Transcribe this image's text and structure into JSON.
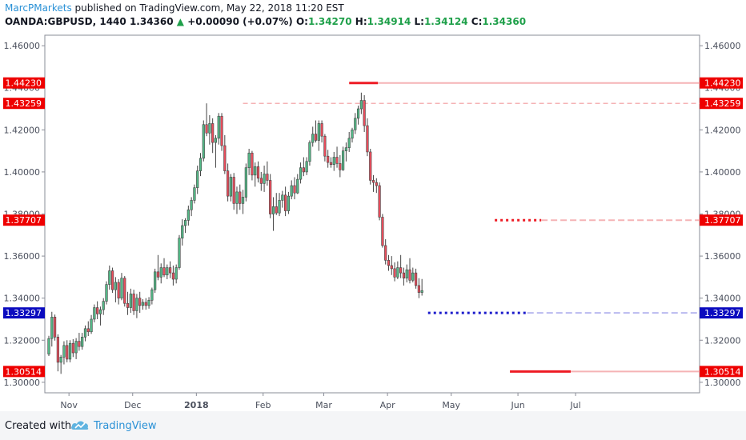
{
  "header": {
    "author": "MarcPMarkets",
    "published_text": " published on TradingView.com, May 22, 2018 11:20 EST",
    "symbol": "OANDA:GBPUSD, 1440",
    "price": "1.34360",
    "change": "+0.00090 (+0.07%)",
    "o_label": "O:",
    "o_value": "1.34270",
    "h_label": "H:",
    "h_value": "1.34914",
    "l_label": "L:",
    "l_value": "1.34124",
    "c_label": "C:",
    "c_value": "1.34360"
  },
  "footer": {
    "created_with": "Created with",
    "brand": "TradingView"
  },
  "colors": {
    "up": "#53b987",
    "down": "#eb4d5c",
    "red_line": "#ee1c25",
    "blue_line": "#1c1ccc",
    "red_tag": "#ee0000",
    "blue_tag": "#0b0bbf"
  },
  "chart_data": {
    "type": "candlestick",
    "ylim": [
      1.295,
      1.465
    ],
    "y_ticks": [
      "1.30000",
      "1.32000",
      "1.34000",
      "1.36000",
      "1.38000",
      "1.40000",
      "1.42000",
      "1.44000",
      "1.46000"
    ],
    "x_labels": [
      "Nov",
      "Dec",
      "2018",
      "Feb",
      "Mar",
      "Apr",
      "May",
      "Jun",
      "Jul"
    ],
    "x_label_bars": [
      4,
      25,
      46,
      68,
      88,
      109,
      130,
      152,
      171
    ],
    "levels": [
      {
        "value": 1.4423,
        "label": "1.44230",
        "color": "red",
        "style": "solid",
        "start_bar": 99
      },
      {
        "value": 1.43259,
        "label": "1.43259",
        "color": "red",
        "style": "dashed",
        "start_bar": 64
      },
      {
        "value": 1.37707,
        "label": "1.37707",
        "color": "red",
        "style": "dotted",
        "start_bar": 147
      },
      {
        "value": 1.33297,
        "label": "1.33297",
        "color": "blue",
        "style": "dotted",
        "start_bar": 125
      },
      {
        "value": 1.30514,
        "label": "1.30514",
        "color": "red",
        "style": "solid",
        "start_bar": 152
      }
    ],
    "ohlc": [
      [
        1.3134,
        1.3221,
        1.3125,
        1.3208
      ],
      [
        1.3208,
        1.3335,
        1.317,
        1.331
      ],
      [
        1.331,
        1.3322,
        1.3198,
        1.3215
      ],
      [
        1.3215,
        1.3228,
        1.3052,
        1.3095
      ],
      [
        1.3095,
        1.313,
        1.304,
        1.312
      ],
      [
        1.312,
        1.3195,
        1.3085,
        1.3175
      ],
      [
        1.3175,
        1.32,
        1.3095,
        1.311
      ],
      [
        1.311,
        1.32,
        1.3095,
        1.3185
      ],
      [
        1.3185,
        1.3205,
        1.312,
        1.314
      ],
      [
        1.314,
        1.321,
        1.311,
        1.3195
      ],
      [
        1.3195,
        1.3235,
        1.315,
        1.317
      ],
      [
        1.317,
        1.3235,
        1.3155,
        1.3215
      ],
      [
        1.3215,
        1.327,
        1.3195,
        1.3255
      ],
      [
        1.3255,
        1.329,
        1.322,
        1.324
      ],
      [
        1.324,
        1.332,
        1.323,
        1.33
      ],
      [
        1.33,
        1.337,
        1.3285,
        1.3355
      ],
      [
        1.3355,
        1.3385,
        1.33,
        1.3325
      ],
      [
        1.3325,
        1.336,
        1.327,
        1.3345
      ],
      [
        1.3345,
        1.34,
        1.332,
        1.3385
      ],
      [
        1.3385,
        1.348,
        1.337,
        1.3465
      ],
      [
        1.3465,
        1.3555,
        1.344,
        1.353
      ],
      [
        1.353,
        1.3545,
        1.3425,
        1.344
      ],
      [
        1.344,
        1.35,
        1.338,
        1.3475
      ],
      [
        1.3475,
        1.349,
        1.337,
        1.34
      ],
      [
        1.34,
        1.352,
        1.339,
        1.3495
      ],
      [
        1.3495,
        1.3505,
        1.336,
        1.3375
      ],
      [
        1.3375,
        1.343,
        1.332,
        1.3355
      ],
      [
        1.3355,
        1.3445,
        1.333,
        1.342
      ],
      [
        1.342,
        1.344,
        1.332,
        1.334
      ],
      [
        1.334,
        1.342,
        1.3305,
        1.34
      ],
      [
        1.34,
        1.343,
        1.333,
        1.3365
      ],
      [
        1.3365,
        1.3395,
        1.3345,
        1.338
      ],
      [
        1.338,
        1.34,
        1.3345,
        1.3365
      ],
      [
        1.3365,
        1.3405,
        1.335,
        1.339
      ],
      [
        1.339,
        1.345,
        1.337,
        1.344
      ],
      [
        1.344,
        1.354,
        1.3425,
        1.3525
      ],
      [
        1.3525,
        1.3605,
        1.3485,
        1.35
      ],
      [
        1.35,
        1.3565,
        1.347,
        1.3545
      ],
      [
        1.3545,
        1.359,
        1.35,
        1.351
      ],
      [
        1.351,
        1.356,
        1.349,
        1.3545
      ],
      [
        1.3545,
        1.3575,
        1.3495,
        1.352
      ],
      [
        1.352,
        1.3555,
        1.346,
        1.349
      ],
      [
        1.349,
        1.356,
        1.347,
        1.3545
      ],
      [
        1.3545,
        1.37,
        1.3535,
        1.3685
      ],
      [
        1.3685,
        1.3775,
        1.365,
        1.3745
      ],
      [
        1.3745,
        1.378,
        1.371,
        1.377
      ],
      [
        1.377,
        1.384,
        1.3745,
        1.382
      ],
      [
        1.382,
        1.388,
        1.379,
        1.3865
      ],
      [
        1.3865,
        1.394,
        1.385,
        1.3925
      ],
      [
        1.3925,
        1.403,
        1.3895,
        1.4005
      ],
      [
        1.4005,
        1.409,
        1.398,
        1.4065
      ],
      [
        1.4065,
        1.4245,
        1.405,
        1.4225
      ],
      [
        1.4225,
        1.4326,
        1.417,
        1.4185
      ],
      [
        1.4185,
        1.427,
        1.413,
        1.423
      ],
      [
        1.423,
        1.4255,
        1.409,
        1.414
      ],
      [
        1.414,
        1.4175,
        1.402,
        1.416
      ],
      [
        1.416,
        1.428,
        1.413,
        1.4265
      ],
      [
        1.4265,
        1.428,
        1.41,
        1.4125
      ],
      [
        1.4125,
        1.4175,
        1.399,
        1.4005
      ],
      [
        1.4005,
        1.404,
        1.386,
        1.3885
      ],
      [
        1.3885,
        1.399,
        1.386,
        1.3975
      ],
      [
        1.3975,
        1.3995,
        1.382,
        1.385
      ],
      [
        1.385,
        1.393,
        1.38,
        1.3905
      ],
      [
        1.3905,
        1.394,
        1.382,
        1.385
      ],
      [
        1.385,
        1.3915,
        1.38,
        1.388
      ],
      [
        1.388,
        1.404,
        1.386,
        1.402
      ],
      [
        1.402,
        1.411,
        1.3985,
        1.409
      ],
      [
        1.409,
        1.41,
        1.396,
        1.3985
      ],
      [
        1.3985,
        1.4045,
        1.393,
        1.4025
      ],
      [
        1.4025,
        1.405,
        1.395,
        1.397
      ],
      [
        1.397,
        1.4,
        1.391,
        1.3945
      ],
      [
        1.3945,
        1.403,
        1.3905,
        1.399
      ],
      [
        1.399,
        1.405,
        1.3935,
        1.396
      ],
      [
        1.396,
        1.399,
        1.378,
        1.38
      ],
      [
        1.38,
        1.388,
        1.372,
        1.3835
      ],
      [
        1.3835,
        1.39,
        1.3795,
        1.3805
      ],
      [
        1.3805,
        1.39,
        1.379,
        1.3865
      ],
      [
        1.3865,
        1.391,
        1.383,
        1.389
      ],
      [
        1.389,
        1.393,
        1.379,
        1.3815
      ],
      [
        1.3815,
        1.3905,
        1.38,
        1.3885
      ],
      [
        1.3885,
        1.396,
        1.387,
        1.3935
      ],
      [
        1.3935,
        1.3975,
        1.387,
        1.39
      ],
      [
        1.39,
        1.399,
        1.3895,
        1.3965
      ],
      [
        1.3965,
        1.4045,
        1.3945,
        1.402
      ],
      [
        1.402,
        1.407,
        1.398,
        1.4
      ],
      [
        1.4,
        1.407,
        1.3985,
        1.405
      ],
      [
        1.405,
        1.415,
        1.403,
        1.414
      ],
      [
        1.414,
        1.4215,
        1.412,
        1.418
      ],
      [
        1.418,
        1.4245,
        1.414,
        1.415
      ],
      [
        1.415,
        1.4245,
        1.41,
        1.423
      ],
      [
        1.423,
        1.4245,
        1.414,
        1.417
      ],
      [
        1.417,
        1.418,
        1.405,
        1.4075
      ],
      [
        1.4075,
        1.4105,
        1.402,
        1.4045
      ],
      [
        1.4045,
        1.407,
        1.402,
        1.4035
      ],
      [
        1.4035,
        1.4095,
        1.4005,
        1.407
      ],
      [
        1.407,
        1.412,
        1.402,
        1.404
      ],
      [
        1.404,
        1.408,
        1.3975,
        1.401
      ],
      [
        1.401,
        1.412,
        1.4005,
        1.41
      ],
      [
        1.41,
        1.414,
        1.405,
        1.4115
      ],
      [
        1.4115,
        1.419,
        1.4095,
        1.416
      ],
      [
        1.416,
        1.421,
        1.414,
        1.42
      ],
      [
        1.42,
        1.428,
        1.418,
        1.4255
      ],
      [
        1.4255,
        1.4315,
        1.4225,
        1.43
      ],
      [
        1.43,
        1.4377,
        1.4275,
        1.434
      ],
      [
        1.434,
        1.4365,
        1.419,
        1.422
      ],
      [
        1.422,
        1.4255,
        1.4075,
        1.4095
      ],
      [
        1.4095,
        1.411,
        1.394,
        1.396
      ],
      [
        1.396,
        1.3985,
        1.3905,
        1.395
      ],
      [
        1.395,
        1.397,
        1.39,
        1.3935
      ],
      [
        1.3935,
        1.395,
        1.377,
        1.3785
      ],
      [
        1.3785,
        1.38,
        1.364,
        1.365
      ],
      [
        1.365,
        1.368,
        1.356,
        1.358
      ],
      [
        1.358,
        1.3605,
        1.353,
        1.3555
      ],
      [
        1.3555,
        1.36,
        1.351,
        1.354
      ],
      [
        1.354,
        1.357,
        1.348,
        1.35
      ],
      [
        1.35,
        1.3575,
        1.349,
        1.3545
      ],
      [
        1.3545,
        1.3605,
        1.3495,
        1.352
      ],
      [
        1.352,
        1.3545,
        1.346,
        1.3495
      ],
      [
        1.3495,
        1.356,
        1.3475,
        1.3535
      ],
      [
        1.3535,
        1.359,
        1.347,
        1.3485
      ],
      [
        1.3485,
        1.3545,
        1.3475,
        1.352
      ],
      [
        1.352,
        1.354,
        1.3445,
        1.346
      ],
      [
        1.346,
        1.3495,
        1.34,
        1.3427
      ],
      [
        1.3427,
        1.3491,
        1.3412,
        1.3436
      ]
    ]
  }
}
